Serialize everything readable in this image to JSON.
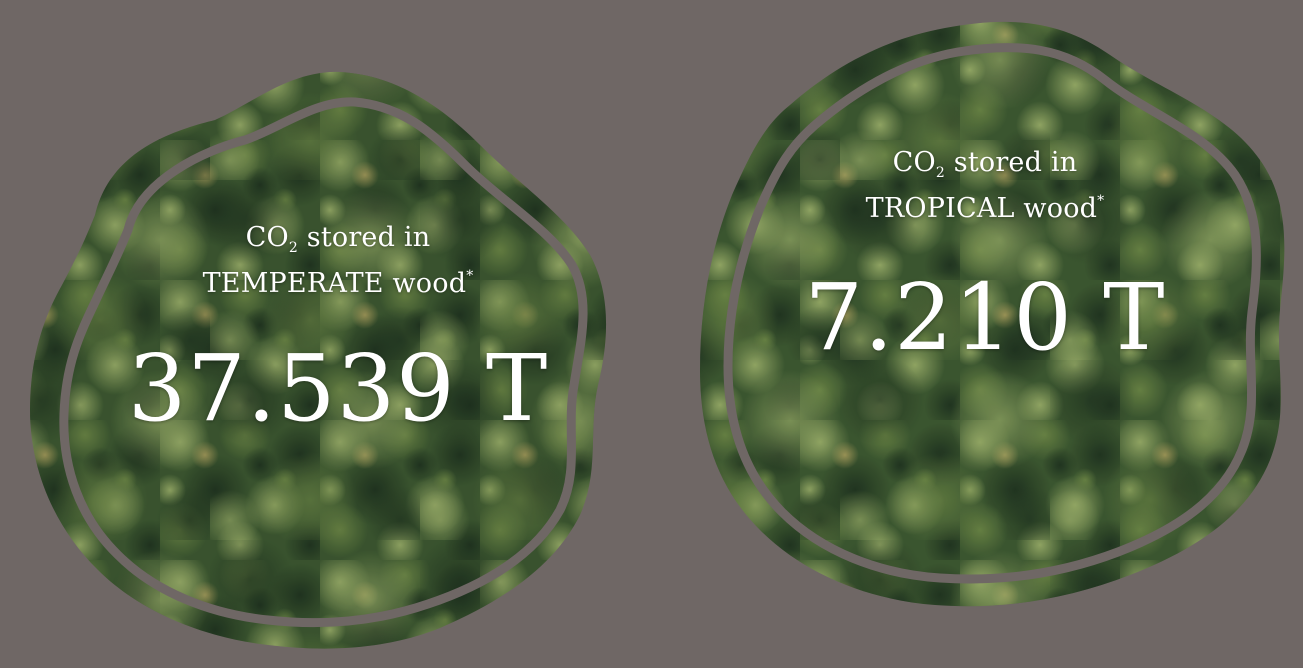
{
  "colors": {
    "background": "#6f6765",
    "foliage_dark": "#2f4a2c",
    "foliage_mid": "#4e6b3a",
    "foliage_light": "#8ca05e",
    "outline_stroke": "#6f6765",
    "text": "#ffffff"
  },
  "stats": [
    {
      "id": "temperate",
      "caption_prefix": "CO",
      "caption_subscript": "2",
      "caption_line1_suffix": " stored in",
      "caption_line2": "TEMPERATE wood",
      "caption_footnote_mark": "*",
      "value": "37.539 T"
    },
    {
      "id": "tropical",
      "caption_prefix": "CO",
      "caption_subscript": "2",
      "caption_line1_suffix": " stored in",
      "caption_line2": "TROPICAL wood",
      "caption_footnote_mark": "*",
      "value": "7.210 T"
    }
  ]
}
